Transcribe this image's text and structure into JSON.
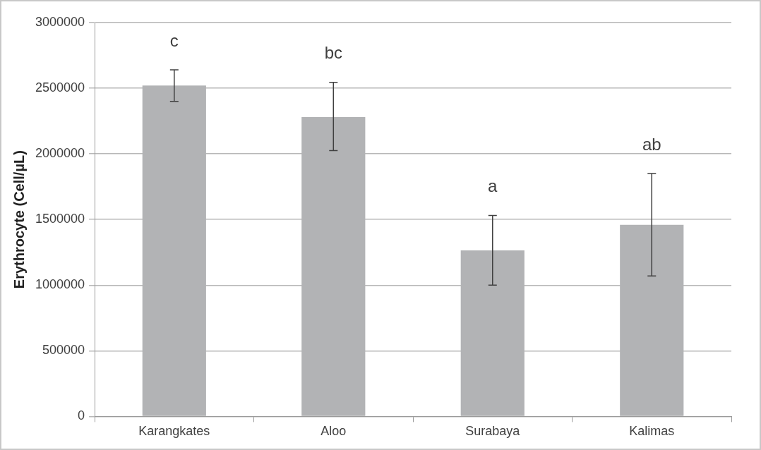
{
  "chart_data": {
    "type": "bar",
    "ylabel": "Erythrocyte (Cell/µL)",
    "categories": [
      "Karangkates",
      "Aloo",
      "Surabaya",
      "Kalimas"
    ],
    "values": [
      2520000,
      2280000,
      1265000,
      1460000
    ],
    "errors": [
      [
        2400000,
        2640000
      ],
      [
        2025000,
        2545000
      ],
      [
        1000000,
        1530000
      ],
      [
        1070000,
        1850000
      ]
    ],
    "color": "#b2b3b5",
    "ylim": [
      0,
      3000000
    ],
    "yticks": [
      0,
      500000,
      1000000,
      1500000,
      2000000,
      2500000,
      3000000
    ],
    "grid": "y",
    "annotations": [
      "c",
      "bc",
      "a",
      "ab"
    ]
  }
}
